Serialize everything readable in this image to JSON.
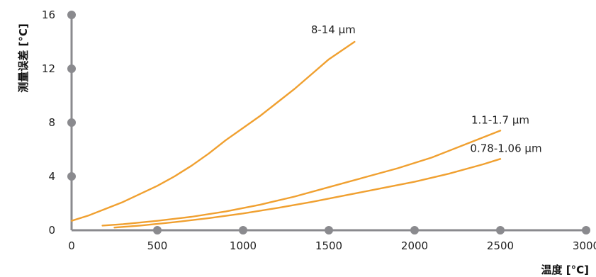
{
  "chart_data": {
    "type": "line",
    "xlabel": "温度 [°C]",
    "ylabel": "测量误差 [°C]",
    "xlim": [
      0,
      3000
    ],
    "ylim": [
      0,
      16
    ],
    "x_ticks": [
      0,
      500,
      1000,
      1500,
      2000,
      2500,
      3000
    ],
    "y_ticks": [
      0,
      4,
      8,
      12,
      16
    ],
    "grid": false,
    "legend": "inline labels at curve ends",
    "colors": {
      "axis": "#8a8a8e",
      "series": "#f0a030"
    },
    "series": [
      {
        "name": "8-14 µm",
        "points": [
          [
            0,
            0.7
          ],
          [
            100,
            1.1
          ],
          [
            200,
            1.6
          ],
          [
            300,
            2.1
          ],
          [
            400,
            2.7
          ],
          [
            500,
            3.3
          ],
          [
            600,
            4.0
          ],
          [
            700,
            4.8
          ],
          [
            800,
            5.7
          ],
          [
            900,
            6.7
          ],
          [
            1000,
            7.6
          ],
          [
            1100,
            8.5
          ],
          [
            1200,
            9.5
          ],
          [
            1300,
            10.5
          ],
          [
            1400,
            11.6
          ],
          [
            1500,
            12.7
          ],
          [
            1650,
            14.0
          ]
        ]
      },
      {
        "name": "1.1-1.7 µm",
        "points": [
          [
            180,
            0.35
          ],
          [
            300,
            0.45
          ],
          [
            500,
            0.7
          ],
          [
            700,
            1.0
          ],
          [
            900,
            1.4
          ],
          [
            1100,
            1.9
          ],
          [
            1300,
            2.5
          ],
          [
            1500,
            3.2
          ],
          [
            1700,
            3.9
          ],
          [
            1900,
            4.6
          ],
          [
            2100,
            5.4
          ],
          [
            2300,
            6.4
          ],
          [
            2500,
            7.4
          ]
        ]
      },
      {
        "name": "0.78-1.06 µm",
        "points": [
          [
            250,
            0.2
          ],
          [
            400,
            0.35
          ],
          [
            600,
            0.6
          ],
          [
            800,
            0.9
          ],
          [
            1000,
            1.25
          ],
          [
            1200,
            1.65
          ],
          [
            1400,
            2.1
          ],
          [
            1600,
            2.6
          ],
          [
            1800,
            3.1
          ],
          [
            2000,
            3.6
          ],
          [
            2200,
            4.2
          ],
          [
            2400,
            4.9
          ],
          [
            2500,
            5.3
          ]
        ]
      }
    ]
  }
}
